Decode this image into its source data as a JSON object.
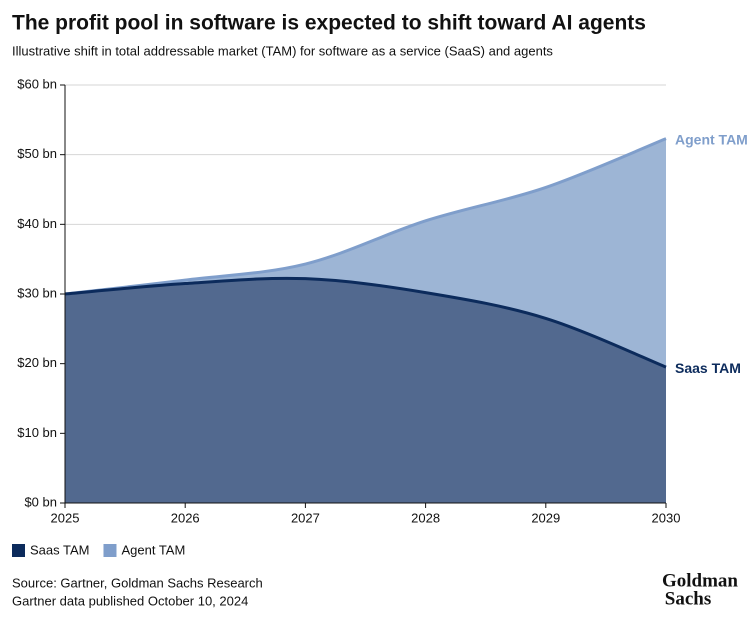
{
  "chart_data": {
    "type": "area",
    "title": "The profit pool in software is expected to shift toward AI agents",
    "subtitle": "Illustrative shift in total addressable market (TAM) for software as a service (SaaS) and agents",
    "x": [
      2025,
      2026,
      2027,
      2028,
      2029,
      2030
    ],
    "series": [
      {
        "name": "Saas TAM",
        "color": "#0c2b5c",
        "fill": "#52698f",
        "values": [
          30,
          31.5,
          32.2,
          30.2,
          26.5,
          19.5
        ]
      },
      {
        "name": "Agent TAM",
        "color": "#7f9ecb",
        "fill": "#9db5d5",
        "values": [
          30,
          32,
          34.3,
          40.5,
          45.3,
          52.3
        ]
      }
    ],
    "xlim": [
      2025,
      2030
    ],
    "xticks": [
      2025,
      2026,
      2027,
      2028,
      2029,
      2030
    ],
    "ylim": [
      0,
      60
    ],
    "yticks": [
      {
        "value": 0,
        "label": "$0 bn"
      },
      {
        "value": 10,
        "label": "$10 bn"
      },
      {
        "value": 20,
        "label": "$20 bn"
      },
      {
        "value": 30,
        "label": "$30 bn"
      },
      {
        "value": 40,
        "label": "$40 bn"
      },
      {
        "value": 50,
        "label": "$50 bn"
      },
      {
        "value": 60,
        "label": "$60 bn"
      }
    ],
    "grid": true,
    "legend": "bottom-left"
  },
  "source": "Source: Gartner, Goldman Sachs Research",
  "note": "Gartner data published October 10, 2024",
  "logo": [
    "Goldman",
    "Sachs"
  ]
}
